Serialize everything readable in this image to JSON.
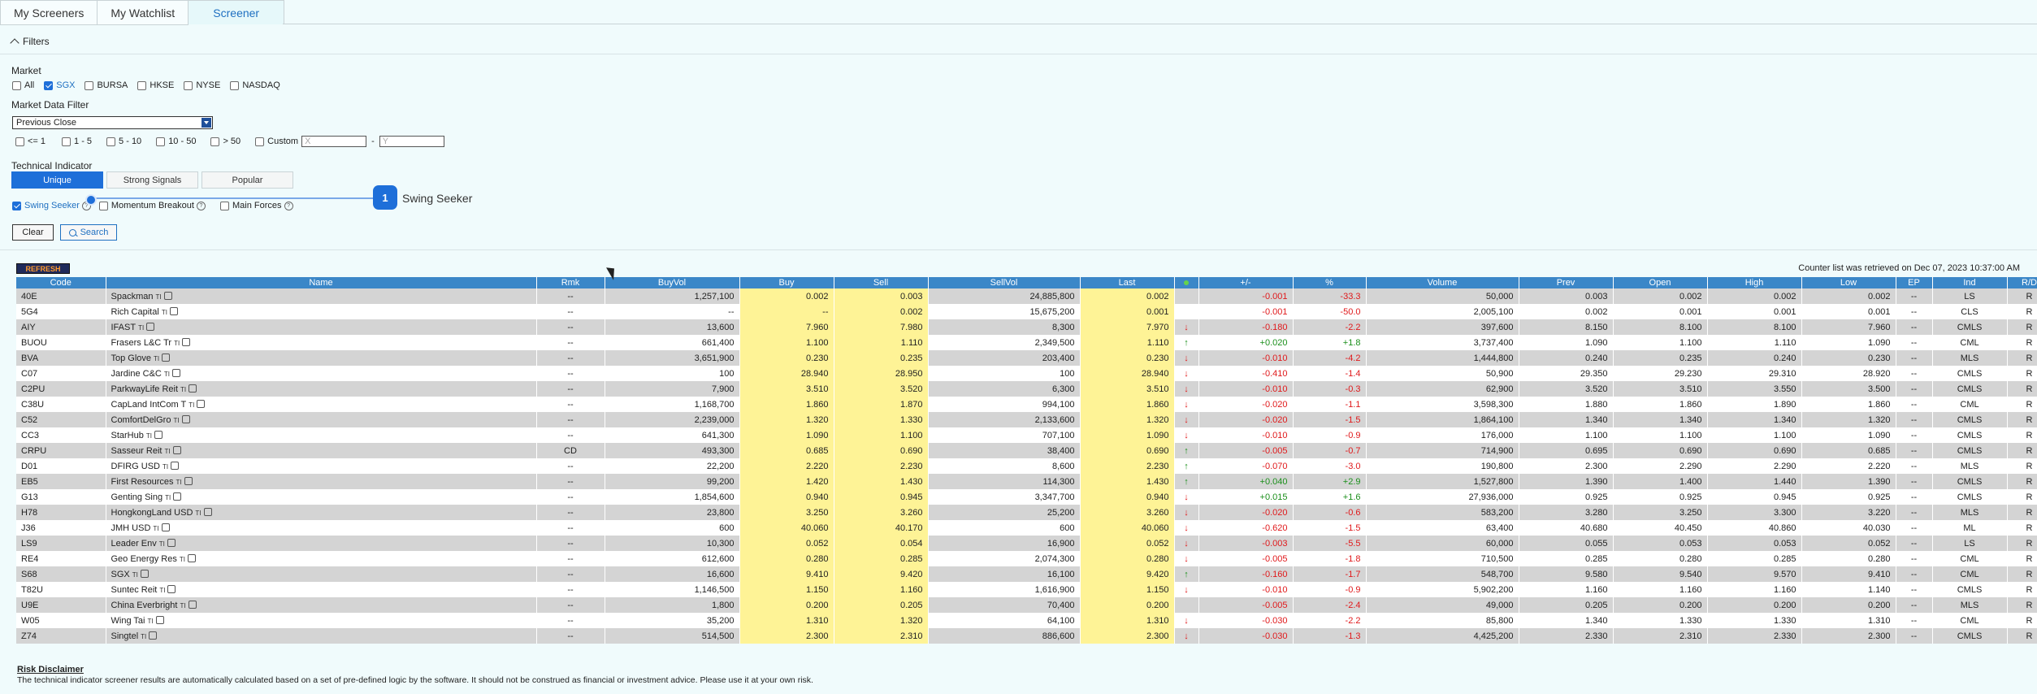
{
  "tabs": [
    {
      "label": "My Screeners",
      "active": false
    },
    {
      "label": "My Watchlist",
      "active": false
    },
    {
      "label": "Screener",
      "active": true
    }
  ],
  "filters_label": "Filters",
  "market": {
    "label": "Market",
    "options": [
      {
        "label": "All",
        "checked": false
      },
      {
        "label": "SGX",
        "checked": true
      },
      {
        "label": "BURSA",
        "checked": false
      },
      {
        "label": "HKSE",
        "checked": false
      },
      {
        "label": "NYSE",
        "checked": false
      },
      {
        "label": "NASDAQ",
        "checked": false
      }
    ]
  },
  "market_data_filter": {
    "label": "Market Data Filter",
    "selected": "Previous Close",
    "ranges": [
      "<= 1",
      "1 - 5",
      "5 - 10",
      "10 - 50",
      "> 50",
      "Custom"
    ],
    "x_placeholder": "X",
    "y_placeholder": "Y",
    "dash": "-"
  },
  "technical_indicator": {
    "label": "Technical Indicator",
    "segments": [
      {
        "label": "Unique",
        "active": true
      },
      {
        "label": "Strong Signals",
        "active": false
      },
      {
        "label": "Popular",
        "active": false
      }
    ],
    "options": [
      {
        "label": "Swing Seeker",
        "checked": true
      },
      {
        "label": "Momentum Breakout",
        "checked": false
      },
      {
        "label": "Main Forces",
        "checked": false
      }
    ]
  },
  "tour": {
    "step": "1",
    "text": "Swing Seeker"
  },
  "buttons": {
    "clear": "Clear",
    "search": "Search",
    "refresh": "REFRESH"
  },
  "retrieved": "Counter list was retrieved on Dec 07, 2023 10:37:00 AM",
  "columns": [
    "Code",
    "Name",
    "Rmk",
    "BuyVol",
    "Buy",
    "Sell",
    "SellVol",
    "Last",
    "",
    "+/-",
    "%",
    "Volume",
    "Prev",
    "Open",
    "High",
    "Low",
    "EP",
    "Ind",
    "R/D"
  ],
  "rows": [
    {
      "code": "40E",
      "name": "Spackman",
      "rmk": "--",
      "buyvol": "1,257,100",
      "buy": "0.002",
      "sell": "0.003",
      "sellvol": "24,885,800",
      "last": "0.002",
      "dir": "",
      "chg": "-0.001",
      "pct": "-33.3",
      "vol": "50,000",
      "prev": "0.003",
      "open": "0.002",
      "high": "0.002",
      "low": "0.002",
      "ep": "--",
      "ind": "LS",
      "rd": "R"
    },
    {
      "code": "5G4",
      "name": "Rich Capital",
      "rmk": "--",
      "buyvol": "--",
      "buy": "--",
      "sell": "0.002",
      "sellvol": "15,675,200",
      "last": "0.001",
      "dir": "",
      "chg": "-0.001",
      "pct": "-50.0",
      "vol": "2,005,100",
      "prev": "0.002",
      "open": "0.001",
      "high": "0.001",
      "low": "0.001",
      "ep": "--",
      "ind": "CLS",
      "rd": "R"
    },
    {
      "code": "AIY",
      "name": "IFAST",
      "rmk": "--",
      "buyvol": "13,600",
      "buy": "7.960",
      "sell": "7.980",
      "sellvol": "8,300",
      "last": "7.970",
      "dir": "down",
      "chg": "-0.180",
      "pct": "-2.2",
      "vol": "397,600",
      "prev": "8.150",
      "open": "8.100",
      "high": "8.100",
      "low": "7.960",
      "ep": "--",
      "ind": "CMLS",
      "rd": "R"
    },
    {
      "code": "BUOU",
      "name": "Frasers L&C Tr",
      "rmk": "--",
      "buyvol": "661,400",
      "buy": "1.100",
      "sell": "1.110",
      "sellvol": "2,349,500",
      "last": "1.110",
      "dir": "up",
      "chg": "+0.020",
      "pct": "+1.8",
      "vol": "3,737,400",
      "prev": "1.090",
      "open": "1.100",
      "high": "1.110",
      "low": "1.090",
      "ep": "--",
      "ind": "CML",
      "rd": "R"
    },
    {
      "code": "BVA",
      "name": "Top Glove",
      "rmk": "--",
      "buyvol": "3,651,900",
      "buy": "0.230",
      "sell": "0.235",
      "sellvol": "203,400",
      "last": "0.230",
      "dir": "down",
      "chg": "-0.010",
      "pct": "-4.2",
      "vol": "1,444,800",
      "prev": "0.240",
      "open": "0.235",
      "high": "0.240",
      "low": "0.230",
      "ep": "--",
      "ind": "MLS",
      "rd": "R"
    },
    {
      "code": "C07",
      "name": "Jardine C&C",
      "rmk": "--",
      "buyvol": "100",
      "buy": "28.940",
      "sell": "28.950",
      "sellvol": "100",
      "last": "28.940",
      "dir": "down",
      "chg": "-0.410",
      "pct": "-1.4",
      "vol": "50,900",
      "prev": "29.350",
      "open": "29.230",
      "high": "29.310",
      "low": "28.920",
      "ep": "--",
      "ind": "CMLS",
      "rd": "R"
    },
    {
      "code": "C2PU",
      "name": "ParkwayLife Reit",
      "rmk": "--",
      "buyvol": "7,900",
      "buy": "3.510",
      "sell": "3.520",
      "sellvol": "6,300",
      "last": "3.510",
      "dir": "down",
      "chg": "-0.010",
      "pct": "-0.3",
      "vol": "62,900",
      "prev": "3.520",
      "open": "3.510",
      "high": "3.550",
      "low": "3.500",
      "ep": "--",
      "ind": "CMLS",
      "rd": "R"
    },
    {
      "code": "C38U",
      "name": "CapLand IntCom T",
      "rmk": "--",
      "buyvol": "1,168,700",
      "buy": "1.860",
      "sell": "1.870",
      "sellvol": "994,100",
      "last": "1.860",
      "dir": "down",
      "chg": "-0.020",
      "pct": "-1.1",
      "vol": "3,598,300",
      "prev": "1.880",
      "open": "1.860",
      "high": "1.890",
      "low": "1.860",
      "ep": "--",
      "ind": "CML",
      "rd": "R"
    },
    {
      "code": "C52",
      "name": "ComfortDelGro",
      "rmk": "--",
      "buyvol": "2,239,000",
      "buy": "1.320",
      "sell": "1.330",
      "sellvol": "2,133,600",
      "last": "1.320",
      "dir": "down",
      "chg": "-0.020",
      "pct": "-1.5",
      "vol": "1,864,100",
      "prev": "1.340",
      "open": "1.340",
      "high": "1.340",
      "low": "1.320",
      "ep": "--",
      "ind": "CMLS",
      "rd": "R"
    },
    {
      "code": "CC3",
      "name": "StarHub",
      "rmk": "--",
      "buyvol": "641,300",
      "buy": "1.090",
      "sell": "1.100",
      "sellvol": "707,100",
      "last": "1.090",
      "dir": "down",
      "chg": "-0.010",
      "pct": "-0.9",
      "vol": "176,000",
      "prev": "1.100",
      "open": "1.100",
      "high": "1.100",
      "low": "1.090",
      "ep": "--",
      "ind": "CMLS",
      "rd": "R"
    },
    {
      "code": "CRPU",
      "name": "Sasseur Reit",
      "rmk": "CD",
      "buyvol": "493,300",
      "buy": "0.685",
      "sell": "0.690",
      "sellvol": "38,400",
      "last": "0.690",
      "dir": "up",
      "chg": "-0.005",
      "pct": "-0.7",
      "vol": "714,900",
      "prev": "0.695",
      "open": "0.690",
      "high": "0.690",
      "low": "0.685",
      "ep": "--",
      "ind": "CMLS",
      "rd": "R"
    },
    {
      "code": "D01",
      "name": "DFIRG USD",
      "rmk": "--",
      "buyvol": "22,200",
      "buy": "2.220",
      "sell": "2.230",
      "sellvol": "8,600",
      "last": "2.230",
      "dir": "up",
      "chg": "-0.070",
      "pct": "-3.0",
      "vol": "190,800",
      "prev": "2.300",
      "open": "2.290",
      "high": "2.290",
      "low": "2.220",
      "ep": "--",
      "ind": "MLS",
      "rd": "R"
    },
    {
      "code": "EB5",
      "name": "First Resources",
      "rmk": "--",
      "buyvol": "99,200",
      "buy": "1.420",
      "sell": "1.430",
      "sellvol": "114,300",
      "last": "1.430",
      "dir": "up",
      "chg": "+0.040",
      "pct": "+2.9",
      "vol": "1,527,800",
      "prev": "1.390",
      "open": "1.400",
      "high": "1.440",
      "low": "1.390",
      "ep": "--",
      "ind": "CMLS",
      "rd": "R"
    },
    {
      "code": "G13",
      "name": "Genting Sing",
      "rmk": "--",
      "buyvol": "1,854,600",
      "buy": "0.940",
      "sell": "0.945",
      "sellvol": "3,347,700",
      "last": "0.940",
      "dir": "down",
      "chg": "+0.015",
      "pct": "+1.6",
      "vol": "27,936,000",
      "prev": "0.925",
      "open": "0.925",
      "high": "0.945",
      "low": "0.925",
      "ep": "--",
      "ind": "CMLS",
      "rd": "R"
    },
    {
      "code": "H78",
      "name": "HongkongLand USD",
      "rmk": "--",
      "buyvol": "23,800",
      "buy": "3.250",
      "sell": "3.260",
      "sellvol": "25,200",
      "last": "3.260",
      "dir": "down",
      "chg": "-0.020",
      "pct": "-0.6",
      "vol": "583,200",
      "prev": "3.280",
      "open": "3.250",
      "high": "3.300",
      "low": "3.220",
      "ep": "--",
      "ind": "MLS",
      "rd": "R"
    },
    {
      "code": "J36",
      "name": "JMH USD",
      "rmk": "--",
      "buyvol": "600",
      "buy": "40.060",
      "sell": "40.170",
      "sellvol": "600",
      "last": "40.060",
      "dir": "down",
      "chg": "-0.620",
      "pct": "-1.5",
      "vol": "63,400",
      "prev": "40.680",
      "open": "40.450",
      "high": "40.860",
      "low": "40.030",
      "ep": "--",
      "ind": "ML",
      "rd": "R"
    },
    {
      "code": "LS9",
      "name": "Leader Env",
      "rmk": "--",
      "buyvol": "10,300",
      "buy": "0.052",
      "sell": "0.054",
      "sellvol": "16,900",
      "last": "0.052",
      "dir": "down",
      "chg": "-0.003",
      "pct": "-5.5",
      "vol": "60,000",
      "prev": "0.055",
      "open": "0.053",
      "high": "0.053",
      "low": "0.052",
      "ep": "--",
      "ind": "LS",
      "rd": "R"
    },
    {
      "code": "RE4",
      "name": "Geo Energy Res",
      "rmk": "--",
      "buyvol": "612,600",
      "buy": "0.280",
      "sell": "0.285",
      "sellvol": "2,074,300",
      "last": "0.280",
      "dir": "down",
      "chg": "-0.005",
      "pct": "-1.8",
      "vol": "710,500",
      "prev": "0.285",
      "open": "0.280",
      "high": "0.285",
      "low": "0.280",
      "ep": "--",
      "ind": "CML",
      "rd": "R"
    },
    {
      "code": "S68",
      "name": "SGX",
      "rmk": "--",
      "buyvol": "16,600",
      "buy": "9.410",
      "sell": "9.420",
      "sellvol": "16,100",
      "last": "9.420",
      "dir": "up",
      "chg": "-0.160",
      "pct": "-1.7",
      "vol": "548,700",
      "prev": "9.580",
      "open": "9.540",
      "high": "9.570",
      "low": "9.410",
      "ep": "--",
      "ind": "CML",
      "rd": "R"
    },
    {
      "code": "T82U",
      "name": "Suntec Reit",
      "rmk": "--",
      "buyvol": "1,146,500",
      "buy": "1.150",
      "sell": "1.160",
      "sellvol": "1,616,900",
      "last": "1.150",
      "dir": "down",
      "chg": "-0.010",
      "pct": "-0.9",
      "vol": "5,902,200",
      "prev": "1.160",
      "open": "1.160",
      "high": "1.160",
      "low": "1.140",
      "ep": "--",
      "ind": "CMLS",
      "rd": "R"
    },
    {
      "code": "U9E",
      "name": "China Everbright",
      "rmk": "--",
      "buyvol": "1,800",
      "buy": "0.200",
      "sell": "0.205",
      "sellvol": "70,400",
      "last": "0.200",
      "dir": "",
      "chg": "-0.005",
      "pct": "-2.4",
      "vol": "49,000",
      "prev": "0.205",
      "open": "0.200",
      "high": "0.200",
      "low": "0.200",
      "ep": "--",
      "ind": "MLS",
      "rd": "R"
    },
    {
      "code": "W05",
      "name": "Wing Tai",
      "rmk": "--",
      "buyvol": "35,200",
      "buy": "1.310",
      "sell": "1.320",
      "sellvol": "64,100",
      "last": "1.310",
      "dir": "down",
      "chg": "-0.030",
      "pct": "-2.2",
      "vol": "85,800",
      "prev": "1.340",
      "open": "1.330",
      "high": "1.330",
      "low": "1.310",
      "ep": "--",
      "ind": "CML",
      "rd": "R"
    },
    {
      "code": "Z74",
      "name": "Singtel",
      "rmk": "--",
      "buyvol": "514,500",
      "buy": "2.300",
      "sell": "2.310",
      "sellvol": "886,600",
      "last": "2.300",
      "dir": "down",
      "chg": "-0.030",
      "pct": "-1.3",
      "vol": "4,425,200",
      "prev": "2.330",
      "open": "2.310",
      "high": "2.330",
      "low": "2.300",
      "ep": "--",
      "ind": "CMLS",
      "rd": "R"
    }
  ],
  "badges": {
    "ti": "TI"
  },
  "disclaimer": {
    "title": "Risk Disclaimer",
    "text": "The technical indicator screener results are automatically calculated based on a set of pre-defined logic by the software. It should not be construed as financial or investment advice. Please use it at your own risk."
  },
  "colors": {
    "header_blue": "#3b87c8",
    "highlight_yellow": "#fef396",
    "down_red": "#e0191b",
    "up_green": "#1b8f1b",
    "accent": "#1e6fd9"
  }
}
